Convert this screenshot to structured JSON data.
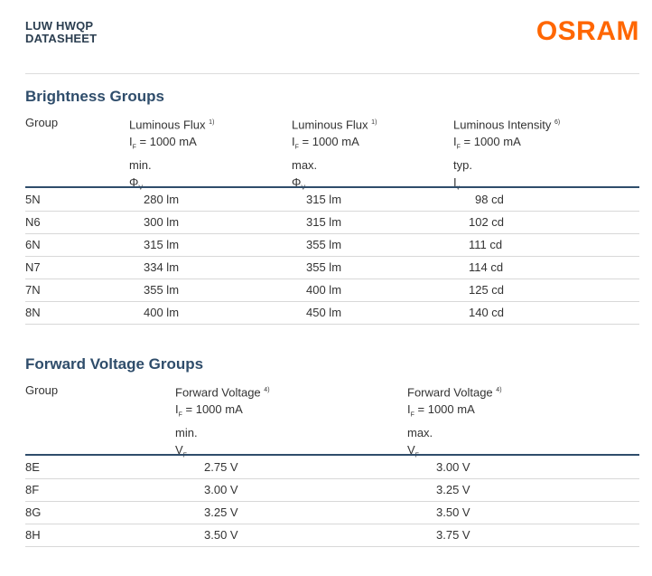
{
  "header": {
    "title_line1": "LUW HWQP",
    "title_line2": "DATASHEET",
    "logo": "OSRAM"
  },
  "brightness": {
    "title": "Brightness Groups",
    "columns": [
      {
        "name": "Group"
      },
      {
        "name": "Luminous Flux",
        "note": "1)",
        "cond_pre": "I",
        "cond_sub": "F",
        "cond_post": " = 1000 mA",
        "qualifier": "min.",
        "symbol": "Φ",
        "symbol_sub": "V"
      },
      {
        "name": "Luminous Flux",
        "note": "1)",
        "cond_pre": "I",
        "cond_sub": "F",
        "cond_post": " = 1000 mA",
        "qualifier": "max.",
        "symbol": "Φ",
        "symbol_sub": "V"
      },
      {
        "name": "Luminous Intensity",
        "note": "6)",
        "cond_pre": "I",
        "cond_sub": "F",
        "cond_post": " = 1000 mA",
        "qualifier": "typ.",
        "symbol": "I",
        "symbol_sub": "v"
      }
    ],
    "rows": [
      [
        "5N",
        "280 lm",
        "315 lm",
        "98 cd"
      ],
      [
        "N6",
        "300 lm",
        "315 lm",
        "102 cd"
      ],
      [
        "6N",
        "315 lm",
        "355 lm",
        "111 cd"
      ],
      [
        "N7",
        "334 lm",
        "355 lm",
        "114 cd"
      ],
      [
        "7N",
        "355 lm",
        "400 lm",
        "125 cd"
      ],
      [
        "8N",
        "400 lm",
        "450 lm",
        "140 cd"
      ]
    ]
  },
  "voltage": {
    "title": "Forward Voltage Groups",
    "columns": [
      {
        "name": "Group"
      },
      {
        "name": "Forward Voltage",
        "note": "4)",
        "cond_pre": "I",
        "cond_sub": "F",
        "cond_post": " = 1000 mA",
        "qualifier": "min.",
        "symbol": "V",
        "symbol_sub": "F"
      },
      {
        "name": "Forward Voltage",
        "note": "4)",
        "cond_pre": "I",
        "cond_sub": "F",
        "cond_post": " = 1000 mA",
        "qualifier": "max.",
        "symbol": "V",
        "symbol_sub": "F"
      }
    ],
    "rows": [
      [
        "8E",
        "2.75 V",
        "3.00 V"
      ],
      [
        "8F",
        "3.00 V",
        "3.25 V"
      ],
      [
        "8G",
        "3.25 V",
        "3.50 V"
      ],
      [
        "8H",
        "3.50 V",
        "3.75 V"
      ]
    ]
  }
}
